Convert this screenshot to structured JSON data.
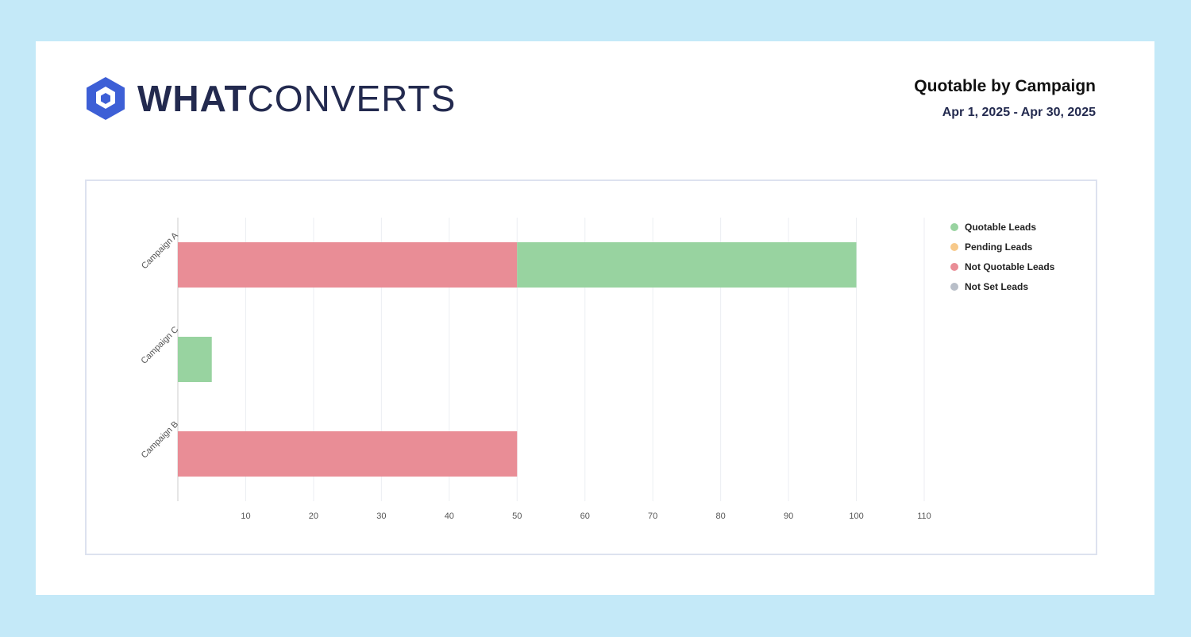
{
  "header": {
    "brand_bold": "WHAT",
    "brand_light": "CONVERTS",
    "logo_icon": "hexagon-cube-icon",
    "report_title": "Quotable by Campaign",
    "date_range": "Apr 1, 2025 - Apr 30, 2025"
  },
  "colors": {
    "background": "#c4e9f8",
    "brand": "#3d5fd6",
    "brand_text": "#232a4f"
  },
  "legend": [
    {
      "label": "Quotable Leads",
      "color": "#98d3a0"
    },
    {
      "label": "Pending Leads",
      "color": "#f7c98a"
    },
    {
      "label": "Not Quotable Leads",
      "color": "#e98d96"
    },
    {
      "label": "Not Set Leads",
      "color": "#b8bec8"
    }
  ],
  "chart_data": {
    "type": "bar",
    "orientation": "horizontal",
    "stacked": true,
    "categories": [
      "Campaign A",
      "Campaign C",
      "Campaign B"
    ],
    "series": [
      {
        "name": "Not Quotable Leads",
        "color": "#e98d96",
        "values": [
          50,
          0,
          50
        ]
      },
      {
        "name": "Quotable Leads",
        "color": "#98d3a0",
        "values": [
          50,
          5,
          0
        ]
      },
      {
        "name": "Pending Leads",
        "color": "#f7c98a",
        "values": [
          0,
          0,
          0
        ]
      },
      {
        "name": "Not Set Leads",
        "color": "#b8bec8",
        "values": [
          0,
          0,
          0
        ]
      }
    ],
    "xlim": [
      0,
      110
    ],
    "xticks": [
      10,
      20,
      30,
      40,
      50,
      60,
      70,
      80,
      90,
      100,
      110
    ],
    "grid": true,
    "legend_position": "right"
  }
}
